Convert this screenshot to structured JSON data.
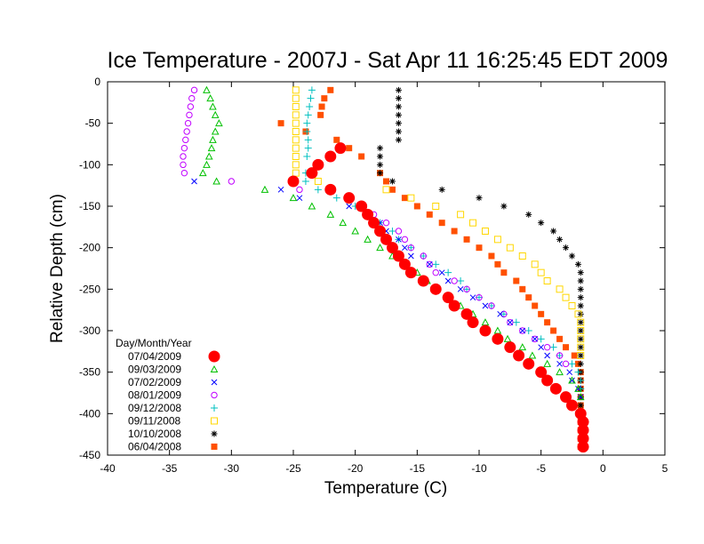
{
  "chart_data": {
    "type": "scatter",
    "title": "Ice Temperature - 2007J - Sat Apr 11 16:25:45 EDT 2009",
    "xlabel": "Temperature (C)",
    "ylabel": "Relative Depth (cm)",
    "xlim": [
      -40,
      5
    ],
    "ylim": [
      -450,
      0
    ],
    "xticks": [
      -40,
      -35,
      -30,
      -25,
      -20,
      -15,
      -10,
      -5,
      0,
      5
    ],
    "yticks": [
      0,
      -50,
      -100,
      -150,
      -200,
      -250,
      -300,
      -350,
      -400,
      -450
    ],
    "grid": false,
    "legend_title": "Day/Month/Year",
    "legend_position": "bottom-left",
    "series": [
      {
        "name": "07/04/2009",
        "marker": "circle-filled",
        "color": "#ff0000",
        "points": [
          [
            -21.2,
            -80
          ],
          [
            -22.0,
            -90
          ],
          [
            -23.0,
            -100
          ],
          [
            -23.5,
            -110
          ],
          [
            -25.0,
            -120
          ],
          [
            -22.0,
            -130
          ],
          [
            -20.5,
            -140
          ],
          [
            -19.5,
            -150
          ],
          [
            -19.0,
            -160
          ],
          [
            -18.5,
            -170
          ],
          [
            -18.0,
            -180
          ],
          [
            -17.5,
            -190
          ],
          [
            -17.0,
            -200
          ],
          [
            -16.5,
            -210
          ],
          [
            -16.0,
            -220
          ],
          [
            -15.5,
            -230
          ],
          [
            -14.5,
            -240
          ],
          [
            -13.5,
            -250
          ],
          [
            -12.5,
            -260
          ],
          [
            -12.0,
            -270
          ],
          [
            -11.0,
            -280
          ],
          [
            -10.5,
            -290
          ],
          [
            -9.5,
            -300
          ],
          [
            -8.5,
            -310
          ],
          [
            -7.5,
            -320
          ],
          [
            -6.8,
            -330
          ],
          [
            -6.0,
            -340
          ],
          [
            -5.0,
            -350
          ],
          [
            -4.5,
            -360
          ],
          [
            -3.8,
            -370
          ],
          [
            -3.0,
            -380
          ],
          [
            -2.5,
            -390
          ],
          [
            -1.8,
            -400
          ],
          [
            -1.6,
            -410
          ],
          [
            -1.6,
            -420
          ],
          [
            -1.6,
            -430
          ],
          [
            -1.6,
            -440
          ]
        ]
      },
      {
        "name": "09/03/2009",
        "marker": "triangle",
        "color": "#00c000",
        "points": [
          [
            -32.0,
            -10
          ],
          [
            -31.7,
            -20
          ],
          [
            -31.5,
            -30
          ],
          [
            -31.3,
            -40
          ],
          [
            -31.0,
            -50
          ],
          [
            -31.3,
            -60
          ],
          [
            -31.5,
            -70
          ],
          [
            -31.6,
            -80
          ],
          [
            -31.8,
            -90
          ],
          [
            -32.0,
            -100
          ],
          [
            -32.3,
            -110
          ],
          [
            -31.2,
            -120
          ],
          [
            -27.3,
            -130
          ],
          [
            -25.0,
            -140
          ],
          [
            -23.5,
            -150
          ],
          [
            -22.0,
            -160
          ],
          [
            -21.0,
            -170
          ],
          [
            -20.0,
            -180
          ],
          [
            -19.0,
            -190
          ],
          [
            -18.0,
            -200
          ],
          [
            -17.0,
            -210
          ],
          [
            -16.0,
            -220
          ],
          [
            -15.0,
            -230
          ],
          [
            -14.2,
            -240
          ],
          [
            -13.5,
            -250
          ],
          [
            -12.5,
            -260
          ],
          [
            -11.5,
            -270
          ],
          [
            -10.5,
            -280
          ],
          [
            -9.5,
            -290
          ],
          [
            -8.5,
            -300
          ],
          [
            -7.7,
            -310
          ],
          [
            -6.5,
            -320
          ],
          [
            -5.7,
            -330
          ],
          [
            -4.5,
            -340
          ],
          [
            -3.5,
            -350
          ],
          [
            -2.5,
            -360
          ],
          [
            -2.0,
            -370
          ],
          [
            -1.8,
            -380
          ]
        ]
      },
      {
        "name": "07/02/2009",
        "marker": "x",
        "color": "#0000ff",
        "points": [
          [
            -33.0,
            -120
          ],
          [
            -26.0,
            -130
          ],
          [
            -24.5,
            -140
          ],
          [
            -20.5,
            -150
          ],
          [
            -19.0,
            -160
          ],
          [
            -18.0,
            -170
          ],
          [
            -17.5,
            -180
          ],
          [
            -16.5,
            -190
          ],
          [
            -16.0,
            -200
          ],
          [
            -15.5,
            -210
          ],
          [
            -14.0,
            -220
          ],
          [
            -13.0,
            -230
          ],
          [
            -12.5,
            -240
          ],
          [
            -11.5,
            -250
          ],
          [
            -10.5,
            -260
          ],
          [
            -9.5,
            -270
          ],
          [
            -8.3,
            -280
          ],
          [
            -7.5,
            -290
          ],
          [
            -6.5,
            -300
          ],
          [
            -5.5,
            -310
          ],
          [
            -5.0,
            -320
          ],
          [
            -4.5,
            -330
          ],
          [
            -3.5,
            -340
          ],
          [
            -2.7,
            -350
          ],
          [
            -2.5,
            -360
          ],
          [
            -2.0,
            -370
          ],
          [
            -1.8,
            -380
          ]
        ]
      },
      {
        "name": "08/01/2009",
        "marker": "circle-open",
        "color": "#c000ff",
        "points": [
          [
            -33.0,
            -10
          ],
          [
            -33.2,
            -20
          ],
          [
            -33.3,
            -30
          ],
          [
            -33.4,
            -40
          ],
          [
            -33.5,
            -50
          ],
          [
            -33.6,
            -60
          ],
          [
            -33.7,
            -70
          ],
          [
            -33.8,
            -80
          ],
          [
            -33.9,
            -90
          ],
          [
            -33.9,
            -100
          ],
          [
            -33.8,
            -110
          ],
          [
            -30.0,
            -120
          ],
          [
            -24.5,
            -130
          ],
          [
            -20.5,
            -140
          ],
          [
            -19.5,
            -150
          ],
          [
            -18.5,
            -160
          ],
          [
            -17.5,
            -170
          ],
          [
            -16.5,
            -180
          ],
          [
            -16.0,
            -190
          ],
          [
            -15.5,
            -200
          ],
          [
            -14.5,
            -210
          ],
          [
            -14.0,
            -220
          ],
          [
            -13.5,
            -230
          ],
          [
            -12.0,
            -240
          ],
          [
            -11.0,
            -250
          ],
          [
            -10.0,
            -260
          ],
          [
            -9.0,
            -270
          ],
          [
            -8.0,
            -280
          ],
          [
            -7.5,
            -290
          ],
          [
            -6.5,
            -300
          ],
          [
            -5.5,
            -310
          ],
          [
            -4.5,
            -320
          ],
          [
            -3.5,
            -330
          ],
          [
            -3.0,
            -340
          ]
        ]
      },
      {
        "name": "09/12/2008",
        "marker": "plus",
        "color": "#00c0c0",
        "points": [
          [
            -23.5,
            -10
          ],
          [
            -23.6,
            -20
          ],
          [
            -23.7,
            -30
          ],
          [
            -23.8,
            -40
          ],
          [
            -23.9,
            -50
          ],
          [
            -23.9,
            -60
          ],
          [
            -23.8,
            -70
          ],
          [
            -23.8,
            -80
          ],
          [
            -23.9,
            -90
          ],
          [
            -24.0,
            -110
          ],
          [
            -24.0,
            -120
          ],
          [
            -23.0,
            -130
          ],
          [
            -21.5,
            -140
          ],
          [
            -20.0,
            -150
          ],
          [
            -19.0,
            -160
          ],
          [
            -18.0,
            -170
          ],
          [
            -17.0,
            -180
          ],
          [
            -16.5,
            -190
          ],
          [
            -15.5,
            -200
          ],
          [
            -14.5,
            -210
          ],
          [
            -13.5,
            -220
          ],
          [
            -12.5,
            -230
          ],
          [
            -11.5,
            -240
          ],
          [
            -11.0,
            -250
          ],
          [
            -10.0,
            -260
          ],
          [
            -9.0,
            -270
          ],
          [
            -8.0,
            -280
          ],
          [
            -7.0,
            -290
          ],
          [
            -6.0,
            -300
          ],
          [
            -5.0,
            -310
          ],
          [
            -4.0,
            -320
          ],
          [
            -3.5,
            -330
          ],
          [
            -2.5,
            -340
          ],
          [
            -2.0,
            -350
          ],
          [
            -1.8,
            -360
          ],
          [
            -1.8,
            -370
          ]
        ]
      },
      {
        "name": "09/11/2008",
        "marker": "square-open",
        "color": "#ffd700",
        "points": [
          [
            -24.8,
            -10
          ],
          [
            -24.8,
            -20
          ],
          [
            -24.8,
            -30
          ],
          [
            -24.8,
            -40
          ],
          [
            -24.8,
            -50
          ],
          [
            -24.8,
            -60
          ],
          [
            -24.8,
            -70
          ],
          [
            -24.8,
            -80
          ],
          [
            -24.8,
            -90
          ],
          [
            -24.8,
            -100
          ],
          [
            -24.8,
            -110
          ],
          [
            -23.0,
            -120
          ],
          [
            -17.5,
            -130
          ],
          [
            -15.5,
            -140
          ],
          [
            -13.5,
            -150
          ],
          [
            -11.5,
            -160
          ],
          [
            -10.5,
            -170
          ],
          [
            -9.5,
            -180
          ],
          [
            -8.5,
            -190
          ],
          [
            -7.5,
            -200
          ],
          [
            -6.5,
            -210
          ],
          [
            -5.5,
            -220
          ],
          [
            -5.0,
            -230
          ],
          [
            -4.5,
            -240
          ],
          [
            -3.5,
            -250
          ],
          [
            -3.0,
            -260
          ],
          [
            -2.5,
            -270
          ],
          [
            -2.0,
            -280
          ],
          [
            -1.8,
            -290
          ],
          [
            -1.8,
            -300
          ],
          [
            -1.8,
            -310
          ],
          [
            -1.8,
            -320
          ],
          [
            -1.8,
            -330
          ]
        ]
      },
      {
        "name": "10/10/2008",
        "marker": "star",
        "color": "#000000",
        "points": [
          [
            -16.5,
            -10
          ],
          [
            -16.5,
            -20
          ],
          [
            -16.5,
            -30
          ],
          [
            -16.5,
            -40
          ],
          [
            -16.5,
            -50
          ],
          [
            -16.5,
            -60
          ],
          [
            -16.5,
            -70
          ],
          [
            -18.0,
            -80
          ],
          [
            -18.0,
            -90
          ],
          [
            -18.0,
            -100
          ],
          [
            -18.0,
            -110
          ],
          [
            -17.0,
            -120
          ],
          [
            -13.0,
            -130
          ],
          [
            -10.0,
            -140
          ],
          [
            -8.0,
            -150
          ],
          [
            -6.0,
            -160
          ],
          [
            -5.0,
            -170
          ],
          [
            -4.0,
            -180
          ],
          [
            -3.5,
            -190
          ],
          [
            -3.0,
            -200
          ],
          [
            -2.5,
            -210
          ],
          [
            -2.0,
            -220
          ],
          [
            -1.8,
            -230
          ],
          [
            -1.8,
            -240
          ],
          [
            -1.8,
            -250
          ],
          [
            -1.8,
            -260
          ],
          [
            -1.8,
            -270
          ],
          [
            -1.8,
            -280
          ],
          [
            -1.8,
            -290
          ],
          [
            -1.8,
            -300
          ],
          [
            -1.8,
            -310
          ],
          [
            -1.8,
            -320
          ],
          [
            -1.8,
            -330
          ],
          [
            -1.8,
            -340
          ],
          [
            -1.8,
            -350
          ],
          [
            -1.8,
            -360
          ],
          [
            -1.8,
            -370
          ],
          [
            -1.8,
            -380
          ],
          [
            -1.8,
            -390
          ],
          [
            -1.8,
            -400
          ],
          [
            -1.8,
            -410
          ],
          [
            -1.8,
            -420
          ],
          [
            -1.8,
            -430
          ],
          [
            -1.8,
            -440
          ]
        ]
      },
      {
        "name": "06/04/2008",
        "marker": "square-filled",
        "color": "#ff5000",
        "points": [
          [
            -22.0,
            -10
          ],
          [
            -22.5,
            -20
          ],
          [
            -22.7,
            -30
          ],
          [
            -22.8,
            -40
          ],
          [
            -26.0,
            -50
          ],
          [
            -24.0,
            -60
          ],
          [
            -21.5,
            -70
          ],
          [
            -20.5,
            -80
          ],
          [
            -19.5,
            -90
          ],
          [
            -18.0,
            -110
          ],
          [
            -17.5,
            -120
          ],
          [
            -17.0,
            -130
          ],
          [
            -16.0,
            -140
          ],
          [
            -15.0,
            -150
          ],
          [
            -14.0,
            -160
          ],
          [
            -13.0,
            -170
          ],
          [
            -12.0,
            -180
          ],
          [
            -11.0,
            -190
          ],
          [
            -10.0,
            -200
          ],
          [
            -9.0,
            -210
          ],
          [
            -8.5,
            -220
          ],
          [
            -8.0,
            -230
          ],
          [
            -7.0,
            -240
          ],
          [
            -6.5,
            -250
          ],
          [
            -6.0,
            -260
          ],
          [
            -5.5,
            -270
          ],
          [
            -5.0,
            -280
          ],
          [
            -4.5,
            -290
          ],
          [
            -4.0,
            -300
          ],
          [
            -3.5,
            -310
          ],
          [
            -3.0,
            -320
          ],
          [
            -2.3,
            -330
          ],
          [
            -2.0,
            -340
          ],
          [
            -1.8,
            -350
          ],
          [
            -1.8,
            -360
          ],
          [
            -1.8,
            -370
          ],
          [
            -1.8,
            -380
          ],
          [
            -1.8,
            -390
          ],
          [
            -1.8,
            -400
          ],
          [
            -1.8,
            -410
          ],
          [
            -1.8,
            -420
          ],
          [
            -1.8,
            -430
          ],
          [
            -1.8,
            -440
          ]
        ]
      }
    ]
  }
}
